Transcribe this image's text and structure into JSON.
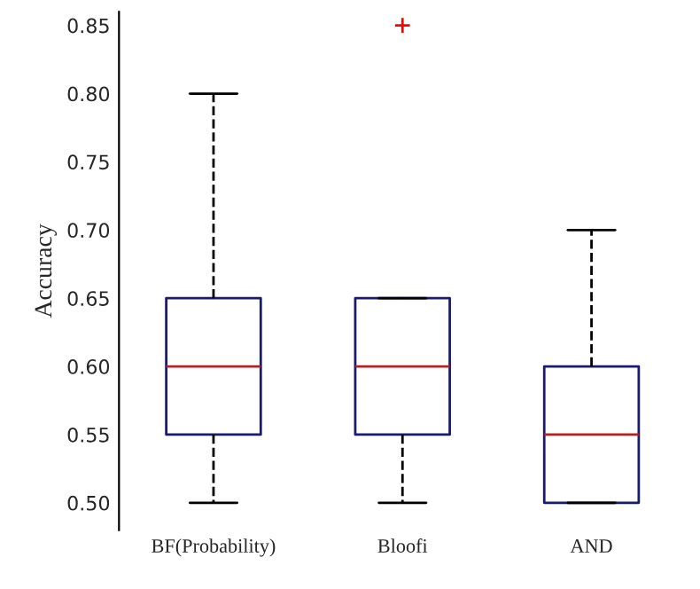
{
  "chart_data": {
    "type": "box",
    "ylabel": "Accuracy",
    "categories": [
      "BF(Probability)",
      "Bloofi",
      "AND"
    ],
    "boxes": [
      {
        "low": 0.5,
        "q1": 0.55,
        "median": 0.6,
        "q3": 0.65,
        "high": 0.8
      },
      {
        "low": 0.5,
        "q1": 0.55,
        "median": 0.6,
        "q3": 0.65,
        "high": 0.65,
        "outliers": [
          0.85
        ]
      },
      {
        "low": 0.5,
        "q1": 0.5,
        "median": 0.55,
        "q3": 0.6,
        "high": 0.7
      }
    ],
    "color": "#1a1a6e",
    "ylim": [
      0.48,
      0.86
    ],
    "yticks": [
      {
        "value": 0.5,
        "label": "0.50"
      },
      {
        "value": 0.55,
        "label": "0.55"
      },
      {
        "value": 0.6,
        "label": "0.60"
      },
      {
        "value": 0.65,
        "label": "0.65"
      },
      {
        "value": 0.7,
        "label": "0.70"
      },
      {
        "value": 0.75,
        "label": "0.75"
      },
      {
        "value": 0.8,
        "label": "0.80"
      },
      {
        "value": 0.85,
        "label": "0.85"
      }
    ],
    "grid": false
  }
}
